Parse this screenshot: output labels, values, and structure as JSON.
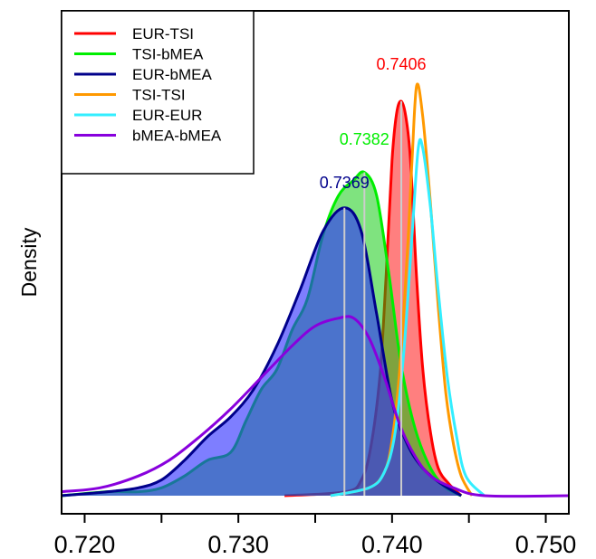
{
  "chart_data": {
    "type": "area",
    "title": "",
    "xlabel": "",
    "ylabel": "Density",
    "xlim": [
      0.7185,
      0.7515
    ],
    "ylim": [
      0,
      1
    ],
    "x_ticks": [
      0.72,
      0.725,
      0.73,
      0.735,
      0.74,
      0.745,
      0.75
    ],
    "x_tick_labels": [
      "0.720",
      "",
      "0.730",
      "",
      "0.740",
      "",
      "0.750"
    ],
    "y_ticks_visible": false,
    "grid": false,
    "legend": {
      "position": "top-left"
    },
    "series": [
      {
        "name": "EUR-TSI",
        "color": "#ff0000",
        "fill": "rgba(255,0,0,0.5)",
        "filled": true,
        "points": [
          [
            0.733,
            0.0
          ],
          [
            0.737,
            0.01
          ],
          [
            0.738,
            0.04
          ],
          [
            0.7386,
            0.12
          ],
          [
            0.7392,
            0.3
          ],
          [
            0.7396,
            0.55
          ],
          [
            0.74,
            0.85
          ],
          [
            0.7403,
            0.97
          ],
          [
            0.7406,
            1.0
          ],
          [
            0.7409,
            0.96
          ],
          [
            0.7412,
            0.85
          ],
          [
            0.7416,
            0.55
          ],
          [
            0.742,
            0.32
          ],
          [
            0.7425,
            0.16
          ],
          [
            0.743,
            0.07
          ],
          [
            0.7437,
            0.03
          ],
          [
            0.7445,
            0.0
          ]
        ]
      },
      {
        "name": "TSI-bMEA",
        "color": "#00ee00",
        "fill": "rgba(0,200,0,0.5)",
        "filled": true,
        "points": [
          [
            0.7185,
            0.0
          ],
          [
            0.7215,
            0.01
          ],
          [
            0.7235,
            0.01
          ],
          [
            0.725,
            0.02
          ],
          [
            0.7265,
            0.05
          ],
          [
            0.728,
            0.09
          ],
          [
            0.7295,
            0.11
          ],
          [
            0.7305,
            0.19
          ],
          [
            0.7315,
            0.27
          ],
          [
            0.7325,
            0.32
          ],
          [
            0.7335,
            0.42
          ],
          [
            0.7345,
            0.5
          ],
          [
            0.7355,
            0.66
          ],
          [
            0.7365,
            0.76
          ],
          [
            0.7375,
            0.8
          ],
          [
            0.7382,
            0.82
          ],
          [
            0.739,
            0.76
          ],
          [
            0.7398,
            0.56
          ],
          [
            0.7406,
            0.33
          ],
          [
            0.7415,
            0.17
          ],
          [
            0.7425,
            0.07
          ],
          [
            0.7435,
            0.02
          ],
          [
            0.7445,
            0.0
          ]
        ]
      },
      {
        "name": "EUR-bMEA",
        "color": "#00008b",
        "fill": "rgba(40,40,255,0.6)",
        "filled": true,
        "points": [
          [
            0.7185,
            0.0
          ],
          [
            0.7215,
            0.01
          ],
          [
            0.7235,
            0.02
          ],
          [
            0.725,
            0.04
          ],
          [
            0.7265,
            0.09
          ],
          [
            0.728,
            0.15
          ],
          [
            0.7295,
            0.2
          ],
          [
            0.731,
            0.27
          ],
          [
            0.7325,
            0.38
          ],
          [
            0.734,
            0.52
          ],
          [
            0.7355,
            0.67
          ],
          [
            0.7369,
            0.73
          ],
          [
            0.738,
            0.67
          ],
          [
            0.739,
            0.46
          ],
          [
            0.74,
            0.24
          ],
          [
            0.741,
            0.13
          ],
          [
            0.742,
            0.07
          ],
          [
            0.7432,
            0.03
          ],
          [
            0.7445,
            0.0
          ]
        ]
      },
      {
        "name": "TSI-TSI",
        "color": "#ff9900",
        "fill": "none",
        "filled": false,
        "points": [
          [
            0.736,
            0.0
          ],
          [
            0.7385,
            0.02
          ],
          [
            0.7395,
            0.06
          ],
          [
            0.74,
            0.14
          ],
          [
            0.7405,
            0.32
          ],
          [
            0.741,
            0.62
          ],
          [
            0.7413,
            0.85
          ],
          [
            0.7416,
            1.04
          ],
          [
            0.742,
            0.96
          ],
          [
            0.7425,
            0.74
          ],
          [
            0.743,
            0.48
          ],
          [
            0.7435,
            0.26
          ],
          [
            0.744,
            0.13
          ],
          [
            0.7445,
            0.05
          ],
          [
            0.7452,
            0.0
          ]
        ]
      },
      {
        "name": "EUR-EUR",
        "color": "#33eeff",
        "fill": "none",
        "filled": false,
        "points": [
          [
            0.736,
            0.0
          ],
          [
            0.7385,
            0.02
          ],
          [
            0.7395,
            0.06
          ],
          [
            0.7402,
            0.16
          ],
          [
            0.7408,
            0.38
          ],
          [
            0.7413,
            0.66
          ],
          [
            0.7417,
            0.88
          ],
          [
            0.742,
            0.88
          ],
          [
            0.7425,
            0.73
          ],
          [
            0.743,
            0.52
          ],
          [
            0.7436,
            0.3
          ],
          [
            0.7442,
            0.15
          ],
          [
            0.7448,
            0.05
          ],
          [
            0.746,
            0.0
          ]
        ]
      },
      {
        "name": "bMEA-bMEA",
        "color": "#8800dd",
        "fill": "none",
        "filled": false,
        "points": [
          [
            0.7185,
            0.01
          ],
          [
            0.721,
            0.02
          ],
          [
            0.7235,
            0.05
          ],
          [
            0.7255,
            0.09
          ],
          [
            0.7275,
            0.15
          ],
          [
            0.7295,
            0.22
          ],
          [
            0.7315,
            0.3
          ],
          [
            0.7335,
            0.38
          ],
          [
            0.735,
            0.43
          ],
          [
            0.7365,
            0.45
          ],
          [
            0.7375,
            0.45
          ],
          [
            0.7385,
            0.4
          ],
          [
            0.7395,
            0.3
          ],
          [
            0.7405,
            0.18
          ],
          [
            0.7415,
            0.1
          ],
          [
            0.7425,
            0.05
          ],
          [
            0.744,
            0.02
          ],
          [
            0.746,
            0.0
          ],
          [
            0.7515,
            0.0
          ]
        ]
      }
    ],
    "peak_markers": [
      {
        "label": "0.7406",
        "x": 0.7406,
        "y": 1.0,
        "color": "#ff0000",
        "label_dx": 0,
        "label_dy": -0.08
      },
      {
        "label": "0.7382",
        "x": 0.7382,
        "y": 0.82,
        "color": "#00ee00",
        "label_dx": 0,
        "label_dy": -0.07
      },
      {
        "label": "0.7369",
        "x": 0.7369,
        "y": 0.73,
        "color": "#00008b",
        "label_dx": 0,
        "label_dy": -0.05
      }
    ]
  }
}
